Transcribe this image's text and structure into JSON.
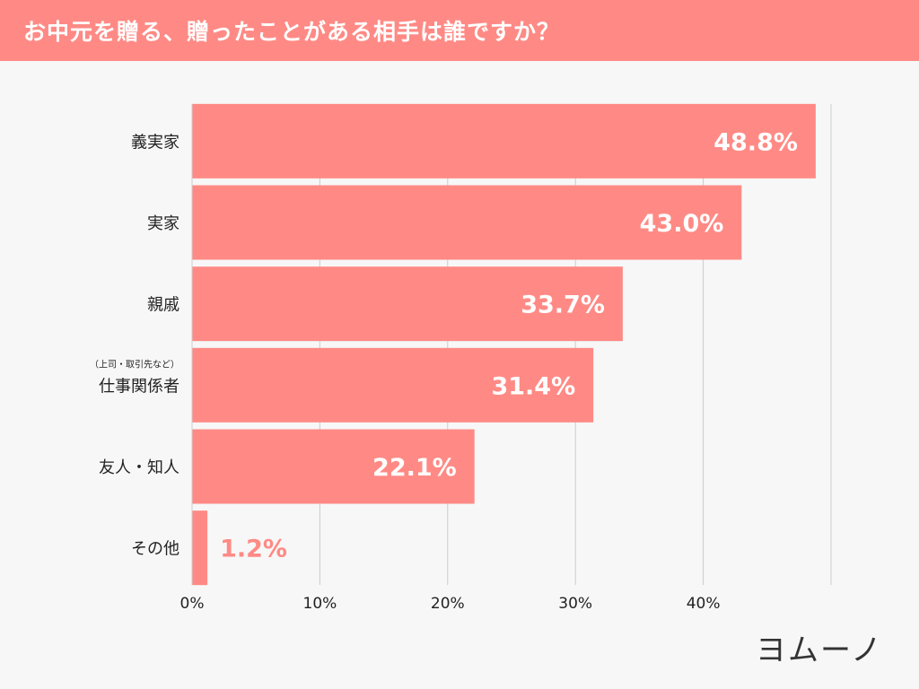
{
  "header": {
    "title": "お中元を贈る、贈ったことがある相手は誰ですか？"
  },
  "brand": {
    "logo_text": "ヨムーノ"
  },
  "colors": {
    "accent": "#ff8a85",
    "background": "#f7f7f7",
    "grid": "#cccccc",
    "text": "#222222"
  },
  "chart_data": {
    "type": "bar",
    "orientation": "horizontal",
    "title": "お中元を贈る、贈ったことがある相手は誰ですか？",
    "categories": [
      {
        "label": "義実家",
        "sublabel": ""
      },
      {
        "label": "実家",
        "sublabel": ""
      },
      {
        "label": "親戚",
        "sublabel": ""
      },
      {
        "label": "仕事関係者",
        "sublabel": "（上司・取引先など）"
      },
      {
        "label": "友人・知人",
        "sublabel": ""
      },
      {
        "label": "その他",
        "sublabel": ""
      }
    ],
    "values": [
      48.8,
      43.0,
      33.7,
      31.4,
      22.1,
      1.2
    ],
    "value_labels": [
      "48.8%",
      "43.0%",
      "33.7%",
      "31.4%",
      "22.1%",
      "1.2%"
    ],
    "xlim": [
      0,
      50
    ],
    "xticks": [
      0,
      10,
      20,
      30,
      40,
      50
    ],
    "xtick_labels": [
      "0%",
      "10%",
      "20%",
      "30%",
      "40%",
      ""
    ],
    "grid": true,
    "xlabel": "",
    "ylabel": ""
  }
}
